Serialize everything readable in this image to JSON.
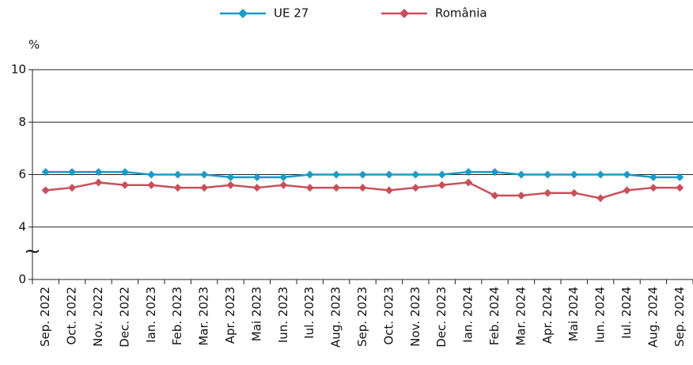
{
  "chart_data": {
    "type": "line",
    "y_label": "%",
    "axis_break_symbol": "~",
    "categories": [
      "Sep. 2022",
      "Oct. 2022",
      "Nov. 2022",
      "Dec. 2022",
      "Ian. 2023",
      "Feb. 2023",
      "Mar. 2023",
      "Apr. 2023",
      "Mai 2023",
      "Iun. 2023",
      "Iul. 2023",
      "Aug. 2023",
      "Sep. 2023",
      "Oct. 2023",
      "Nov. 2023",
      "Dec. 2023",
      "Ian. 2024",
      "Feb. 2024",
      "Mar. 2024",
      "Apr. 2024",
      "Mai 2024",
      "Iun. 2024",
      "Iul. 2024",
      "Aug. 2024",
      "Sep. 2024"
    ],
    "series": [
      {
        "name": "UE 27",
        "color": "#1a9bc8",
        "values": [
          6.1,
          6.1,
          6.1,
          6.1,
          6.0,
          6.0,
          6.0,
          5.9,
          5.9,
          5.9,
          6.0,
          6.0,
          6.0,
          6.0,
          6.0,
          6.0,
          6.1,
          6.1,
          6.0,
          6.0,
          6.0,
          6.0,
          6.0,
          5.9,
          5.9
        ]
      },
      {
        "name": "România",
        "color": "#c8505a",
        "values": [
          5.4,
          5.5,
          5.7,
          5.6,
          5.6,
          5.5,
          5.5,
          5.6,
          5.5,
          5.6,
          5.5,
          5.5,
          5.5,
          5.4,
          5.5,
          5.6,
          5.7,
          5.2,
          5.2,
          5.3,
          5.3,
          5.1,
          5.4,
          5.5,
          5.5
        ]
      }
    ],
    "ylim": [
      0,
      10
    ],
    "yticks": [
      0,
      4,
      6,
      8,
      10
    ],
    "grid": true
  }
}
